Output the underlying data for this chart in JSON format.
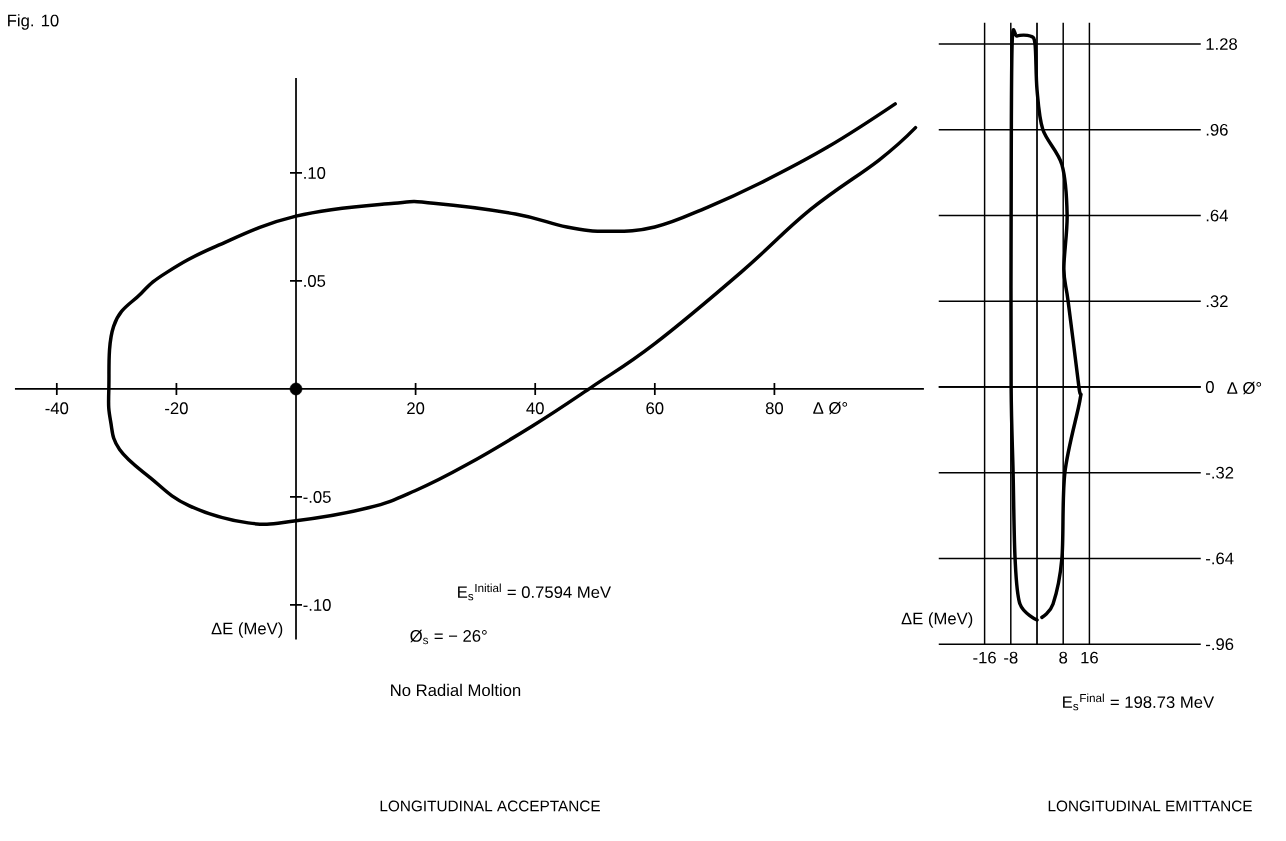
{
  "chart_data": [
    {
      "type": "line",
      "title": "LONGITUDINAL ACCEPTANCE",
      "xlabel": "Δ Ø°",
      "ylabel": "ΔE (MeV)",
      "annotations": [
        "Fig. 10",
        "E$_{s}$$^{Initial}$ = 0.7594 MeV",
        "Ø$_{s}$ = − 26°",
        "No Radial Moltion"
      ],
      "series": [
        {
          "color": "#000000",
          "x": [
            100.2,
            88.9,
            77.4,
            68.7,
            60,
            52.3,
            45.3,
            36.7,
            23,
            16.4,
            0,
            -13.4,
            -21.6,
            -26,
            -30.5,
            -31.3,
            -31,
            -29.5,
            -24.4,
            -17.9,
            -8,
            0,
            12.1,
            20,
            28.6,
            39.6,
            49.5,
            60,
            74.4,
            86,
            97.5,
            103.6
          ],
          "values": [
            0.132,
            0.112,
            0.095,
            0.084,
            0.075,
            0.073,
            0.075,
            0.081,
            0.086,
            0.086,
            0.08,
            0.066,
            0.054,
            0.044,
            0.029,
            0,
            -0.015,
            -0.028,
            -0.041,
            -0.054,
            -0.062,
            -0.061,
            -0.055,
            -0.047,
            -0.035,
            -0.017,
            0.001,
            0.021,
            0.054,
            0.083,
            0.106,
            0.121
          ]
        },
        {
          "type": "scatter",
          "marker": "circle",
          "color": "#000000",
          "x": [
            0
          ],
          "values": [
            0
          ]
        }
      ],
      "xlim": [
        -47,
        105
      ],
      "ylim": [
        -0.116,
        0.144
      ],
      "xticks": [
        -40,
        -20,
        20,
        40,
        60,
        80
      ],
      "yticks": [
        {
          "value": 0.1,
          "label": ".10"
        },
        {
          "value": 0.05,
          "label": ".05"
        },
        {
          "value": -0.05,
          "label": "-.05"
        },
        {
          "value": -0.1,
          "label": "-.10"
        }
      ],
      "marker": "none",
      "line_style": "solid"
    },
    {
      "type": "line",
      "title": "LONGITUDINAL EMITTANCE",
      "xlabel": "Δ Ø°",
      "ylabel": "ΔE (MeV)",
      "annotations": [
        "E$_{s}$$^{Final}$ = 198.73 MeV"
      ],
      "series": [
        {
          "color": "#000000",
          "x": [
            0,
            -5.2,
            -6.7,
            -7.3,
            -7.9,
            -7.9,
            -7.6,
            -6.1,
            -2.1,
            -0.6,
            0,
            1.8,
            7.6,
            9.2,
            8.2,
            9.5,
            12.8,
            13.1,
            8.5,
            7.6,
            4.9,
            1.5
          ],
          "values": [
            -0.87,
            -0.81,
            -0.64,
            -0.32,
            0,
            0.64,
            1.28,
            1.31,
            1.31,
            1.28,
            1.11,
            0.96,
            0.83,
            0.64,
            0.44,
            0.32,
            0,
            -0.05,
            -0.32,
            -0.64,
            -0.81,
            -0.86
          ]
        }
      ],
      "xlim": [
        -30,
        50
      ],
      "ylim": [
        -0.96,
        1.36
      ],
      "xticks": [
        -16,
        -8,
        8,
        16
      ],
      "yticks": [
        {
          "value": 1.28,
          "label": "1.28"
        },
        {
          "value": 0.96,
          "label": ".96"
        },
        {
          "value": 0.64,
          "label": ".64"
        },
        {
          "value": 0.32,
          "label": ".32"
        },
        0,
        {
          "value": -0.32,
          "label": "-.32"
        },
        {
          "value": -0.64,
          "label": "-.64"
        },
        {
          "value": -0.96,
          "label": "-.96"
        }
      ],
      "grid": true,
      "marker": "none",
      "line_style": "solid"
    }
  ]
}
